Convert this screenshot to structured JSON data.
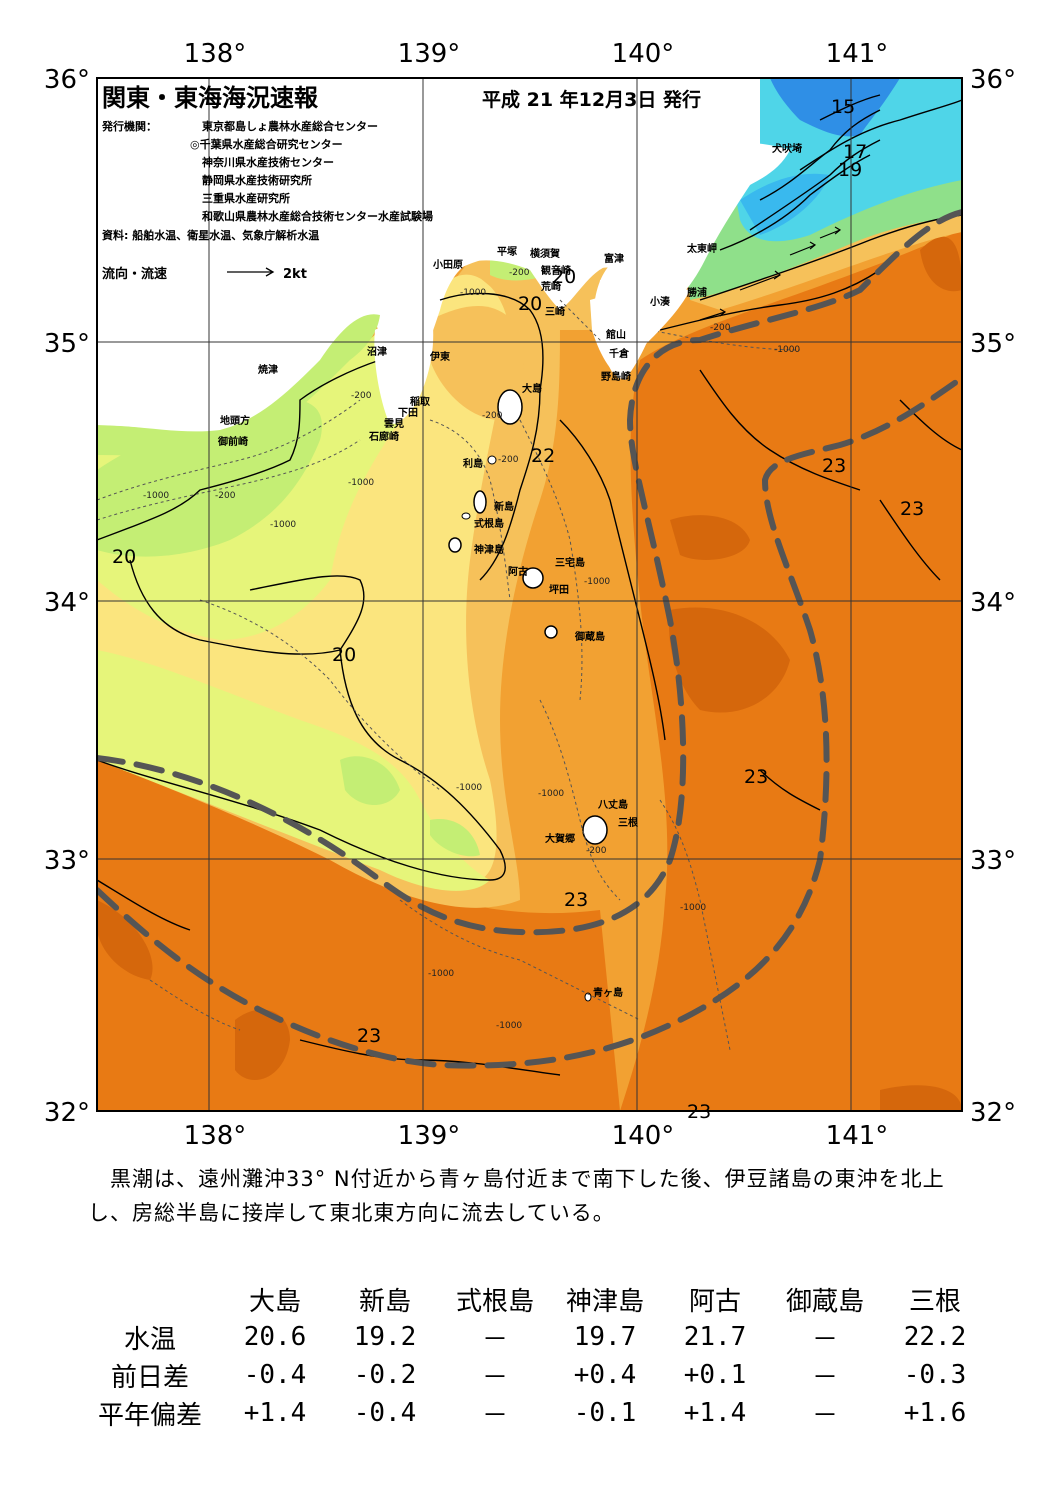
{
  "title": "関東・東海海況速報",
  "issued": "平成 21 年12月3日 発行",
  "issuers": {
    "label": "発行機関：",
    "list": [
      "東京都島しょ農林水産総合センター",
      "◎千葉県水産総合研究センター",
      "神奈川県水産技術センター",
      "静岡県水産技術研究所",
      "三重県水産研究所",
      "和歌山県農林水産総合技術センター水産試験場"
    ]
  },
  "sources": "資料: 船舶水温、衛星水温、気象庁解析水温",
  "legend": {
    "label": "流向・流速",
    "value": "2kt"
  },
  "axes": {
    "lon_ticks": [
      "138°",
      "139°",
      "140°",
      "141°"
    ],
    "lat_ticks": [
      "36°",
      "35°",
      "34°",
      "33°",
      "32°"
    ]
  },
  "places": [
    "小田原",
    "平塚",
    "横須賀",
    "観音崎",
    "富津",
    "荒崎",
    "三崎",
    "館山",
    "千倉",
    "野島崎",
    "犬吠埼",
    "太東岬",
    "勝浦",
    "小湊",
    "沼津",
    "伊東",
    "焼津",
    "稲取",
    "下田",
    "雲見",
    "石廊崎",
    "地頭方",
    "御前崎",
    "大島",
    "利島",
    "新島",
    "式根島",
    "神津島",
    "三宅島",
    "阿古",
    "坪田",
    "御蔵島",
    "八丈島",
    "三根",
    "大賀郷",
    "青ヶ島"
  ],
  "isotherm_labels": [
    "15",
    "17",
    "19",
    "20",
    "20",
    "20",
    "20",
    "22",
    "23",
    "23",
    "23",
    "23",
    "23",
    "23"
  ],
  "depth_labels": [
    "-200",
    "-1000"
  ],
  "colors": {
    "kuroshio_line": "#555555",
    "t23plus": "#e87a14",
    "t22": "#f2a132",
    "t21": "#f6c15a",
    "t20": "#fbe57e",
    "t19": "#e6f57a",
    "t18": "#c4ee74",
    "t17": "#8fe08a",
    "t15": "#4fd5e8",
    "t13": "#2f8fe6"
  },
  "description": "　黒潮は、遠州灘沖33° N付近から青ヶ島付近まで南下した後、伊豆諸島の東沖を北上し、房総半島に接岸して東北東方向に流去している。",
  "table": {
    "columns": [
      "大島",
      "新島",
      "式根島",
      "神津島",
      "阿古",
      "御蔵島",
      "三根"
    ],
    "rows": [
      {
        "label": "水温",
        "values": [
          "20.6",
          "19.2",
          "－",
          "19.7",
          "21.7",
          "－",
          "22.2"
        ]
      },
      {
        "label": "前日差",
        "values": [
          "-0.4",
          "-0.2",
          "－",
          "+0.4",
          "+0.1",
          "－",
          "-0.3"
        ]
      },
      {
        "label": "平年偏差",
        "values": [
          "+1.4",
          "-0.4",
          "－",
          "-0.1",
          "+1.4",
          "－",
          "+1.6"
        ]
      }
    ]
  }
}
